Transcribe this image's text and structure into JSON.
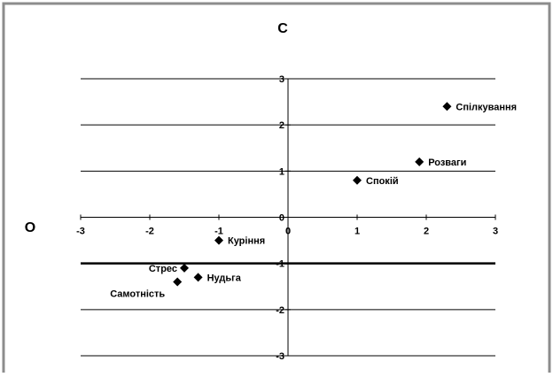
{
  "chart_data": {
    "type": "scatter",
    "title": "C",
    "ylabel": "O",
    "xlim": [
      -3,
      3
    ],
    "ylim": [
      -3,
      3
    ],
    "grid": "horizontal",
    "legend": "none",
    "marker_color": "#000000",
    "grid_color": "#000000",
    "xticks": [
      "-3",
      "-2",
      "-1",
      "0",
      "1",
      "2",
      "3"
    ],
    "yticks": [
      "3",
      "2",
      "1",
      "0",
      "-1",
      "-2",
      "-3"
    ],
    "points": [
      {
        "label": "Спілкування",
        "x": 2.3,
        "y": 2.4
      },
      {
        "label": "Розваги",
        "x": 1.9,
        "y": 1.2
      },
      {
        "label": "Спокій",
        "x": 1.0,
        "y": 0.8
      },
      {
        "label": "Куріння",
        "x": -1.0,
        "y": -0.5
      },
      {
        "label": "Стрес",
        "x": -1.5,
        "y": -1.1
      },
      {
        "label": "Нудьга",
        "x": -1.3,
        "y": -1.3
      },
      {
        "label": "Самотність",
        "x": -1.6,
        "y": -1.4
      }
    ]
  }
}
